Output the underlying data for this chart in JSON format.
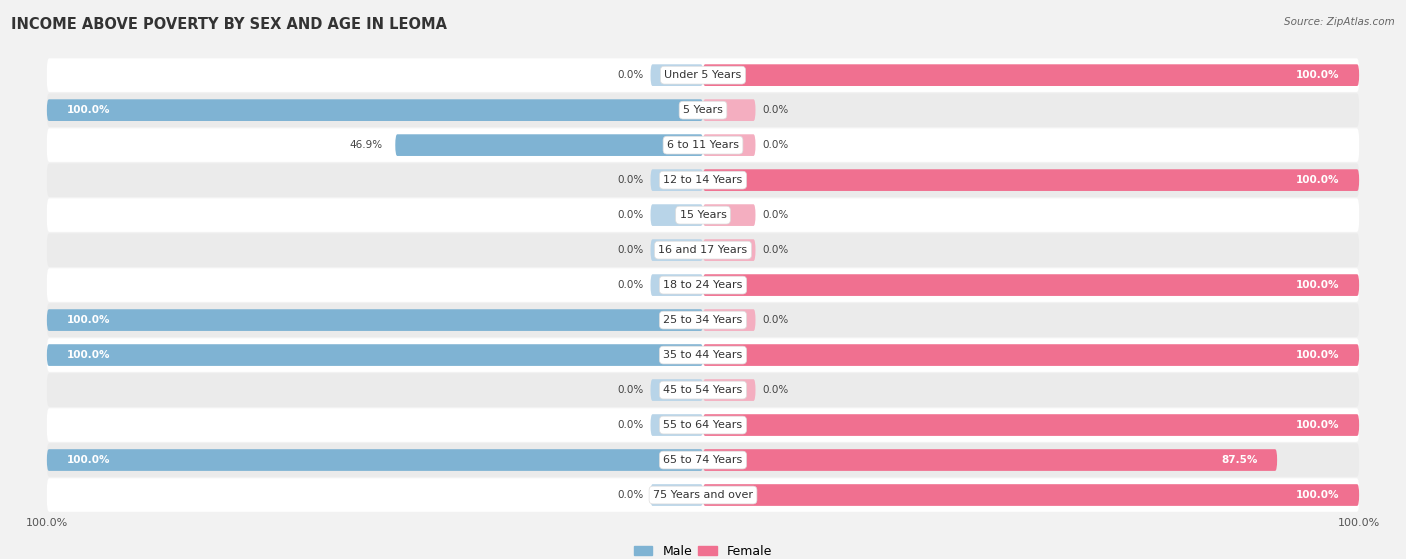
{
  "title": "INCOME ABOVE POVERTY BY SEX AND AGE IN LEOMA",
  "source": "Source: ZipAtlas.com",
  "categories": [
    "Under 5 Years",
    "5 Years",
    "6 to 11 Years",
    "12 to 14 Years",
    "15 Years",
    "16 and 17 Years",
    "18 to 24 Years",
    "25 to 34 Years",
    "35 to 44 Years",
    "45 to 54 Years",
    "55 to 64 Years",
    "65 to 74 Years",
    "75 Years and over"
  ],
  "male": [
    0.0,
    100.0,
    46.9,
    0.0,
    0.0,
    0.0,
    0.0,
    100.0,
    100.0,
    0.0,
    0.0,
    100.0,
    0.0
  ],
  "female": [
    100.0,
    0.0,
    0.0,
    100.0,
    0.0,
    0.0,
    100.0,
    0.0,
    100.0,
    0.0,
    100.0,
    87.5,
    100.0
  ],
  "male_color": "#7fb3d3",
  "female_color": "#f07090",
  "male_color_light": "#b8d4e8",
  "female_color_light": "#f4aec0",
  "background_color": "#f2f2f2",
  "row_bg_even": "#ffffff",
  "row_bg_odd": "#ebebeb",
  "title_fontsize": 10.5,
  "label_fontsize": 7.5,
  "category_fontsize": 8,
  "axis_label_fontsize": 8
}
